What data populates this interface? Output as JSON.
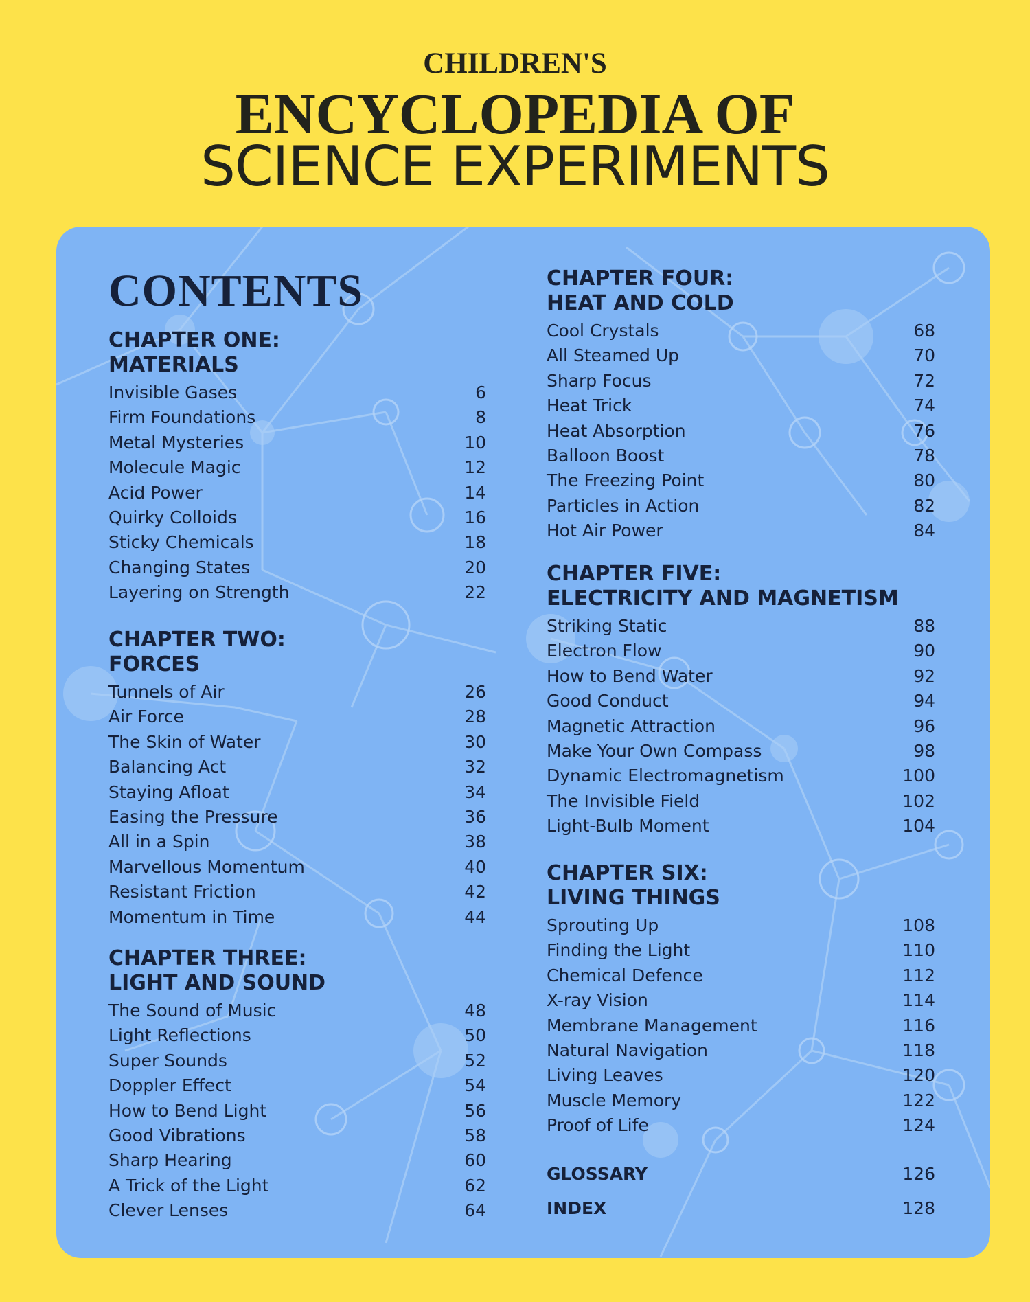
{
  "header": {
    "pre_title": "CHILDREN'S",
    "title_line1": "ENCYCLOPEDIA OF",
    "title_line2": "SCIENCE EXPERIMENTS"
  },
  "contents_heading": "CONTENTS",
  "chapters": [
    {
      "title_line1": "CHAPTER ONE:",
      "title_line2": "MATERIALS",
      "entries": [
        {
          "label": "Invisible Gases",
          "page": "6"
        },
        {
          "label": "Firm Foundations",
          "page": "8"
        },
        {
          "label": "Metal Mysteries",
          "page": "10"
        },
        {
          "label": "Molecule Magic",
          "page": "12"
        },
        {
          "label": "Acid Power",
          "page": "14"
        },
        {
          "label": "Quirky Colloids",
          "page": "16"
        },
        {
          "label": "Sticky Chemicals",
          "page": "18"
        },
        {
          "label": "Changing States",
          "page": "20"
        },
        {
          "label": "Layering on Strength",
          "page": "22"
        }
      ]
    },
    {
      "title_line1": "CHAPTER TWO:",
      "title_line2": "FORCES",
      "entries": [
        {
          "label": "Tunnels of Air",
          "page": "26"
        },
        {
          "label": "Air Force",
          "page": "28"
        },
        {
          "label": "The Skin of Water",
          "page": "30"
        },
        {
          "label": "Balancing Act",
          "page": "32"
        },
        {
          "label": "Staying Afloat",
          "page": "34"
        },
        {
          "label": "Easing the Pressure",
          "page": "36"
        },
        {
          "label": "All in a Spin",
          "page": "38"
        },
        {
          "label": "Marvellous Momentum",
          "page": "40"
        },
        {
          "label": "Resistant Friction",
          "page": "42"
        },
        {
          "label": "Momentum in Time",
          "page": "44"
        }
      ]
    },
    {
      "title_line1": "CHAPTER THREE:",
      "title_line2": "LIGHT AND SOUND",
      "entries": [
        {
          "label": "The Sound of Music",
          "page": "48"
        },
        {
          "label": "Light Reflections",
          "page": "50"
        },
        {
          "label": "Super Sounds",
          "page": "52"
        },
        {
          "label": "Doppler Effect",
          "page": "54"
        },
        {
          "label": "How to Bend Light",
          "page": "56"
        },
        {
          "label": "Good Vibrations",
          "page": "58"
        },
        {
          "label": "Sharp Hearing",
          "page": "60"
        },
        {
          "label": "A Trick of the Light",
          "page": "62"
        },
        {
          "label": "Clever Lenses",
          "page": "64"
        }
      ]
    },
    {
      "title_line1": "CHAPTER FOUR:",
      "title_line2": "HEAT AND COLD",
      "entries": [
        {
          "label": "Cool Crystals",
          "page": "68"
        },
        {
          "label": "All Steamed Up",
          "page": "70"
        },
        {
          "label": "Sharp Focus",
          "page": "72"
        },
        {
          "label": "Heat Trick",
          "page": "74"
        },
        {
          "label": "Heat Absorption",
          "page": "76"
        },
        {
          "label": "Balloon Boost",
          "page": "78"
        },
        {
          "label": "The Freezing Point",
          "page": "80"
        },
        {
          "label": "Particles in Action",
          "page": "82"
        },
        {
          "label": "Hot Air Power",
          "page": "84"
        }
      ]
    },
    {
      "title_line1": "CHAPTER FIVE:",
      "title_line2": "ELECTRICITY AND MAGNETISM",
      "entries": [
        {
          "label": "Striking Static",
          "page": "88"
        },
        {
          "label": "Electron Flow",
          "page": "90"
        },
        {
          "label": "How to Bend Water",
          "page": "92"
        },
        {
          "label": "Good Conduct",
          "page": "94"
        },
        {
          "label": "Magnetic Attraction",
          "page": "96"
        },
        {
          "label": "Make Your Own Compass",
          "page": "98"
        },
        {
          "label": "Dynamic Electromagnetism",
          "page": "100"
        },
        {
          "label": "The Invisible Field",
          "page": "102"
        },
        {
          "label": "Light-Bulb Moment",
          "page": "104"
        }
      ]
    },
    {
      "title_line1": "CHAPTER SIX:",
      "title_line2": "LIVING THINGS",
      "entries": [
        {
          "label": "Sprouting Up",
          "page": "108"
        },
        {
          "label": "Finding the Light",
          "page": "110"
        },
        {
          "label": "Chemical Defence",
          "page": "112"
        },
        {
          "label": "X-ray Vision",
          "page": "114"
        },
        {
          "label": "Membrane Management",
          "page": "116"
        },
        {
          "label": "Natural Navigation",
          "page": "118"
        },
        {
          "label": "Living Leaves",
          "page": "120"
        },
        {
          "label": "Muscle Memory",
          "page": "122"
        },
        {
          "label": "Proof of Life",
          "page": "124"
        }
      ]
    }
  ],
  "glossary": {
    "label": "GLOSSARY",
    "page": "126"
  },
  "index": {
    "label": "INDEX",
    "page": "128"
  },
  "colors": {
    "page_background": "#fde24a",
    "panel_background": "#7fb4f4",
    "text": "#16213a",
    "title_text": "#22231c"
  }
}
